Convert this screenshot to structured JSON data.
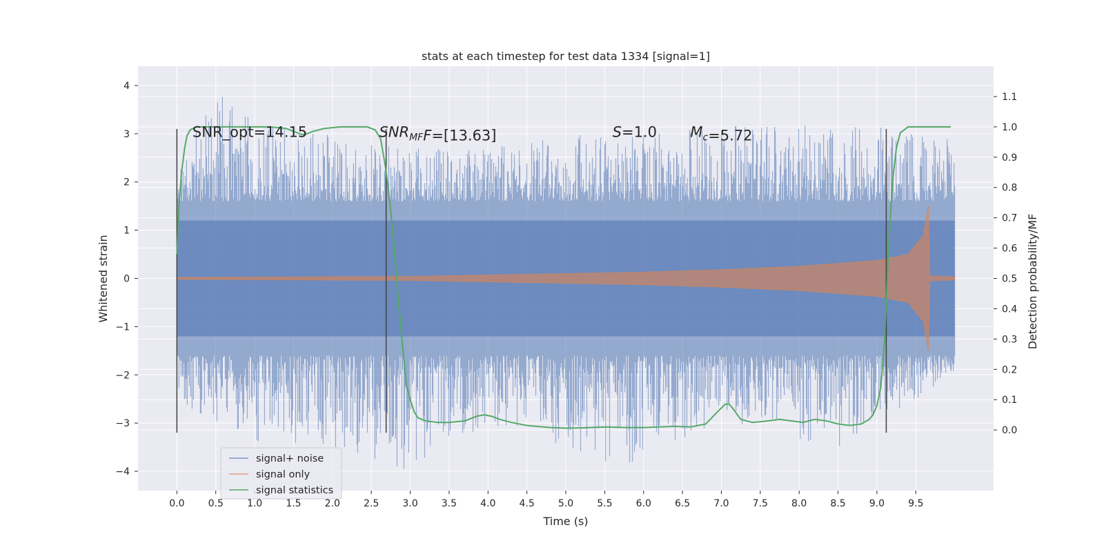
{
  "chart_data": {
    "type": "line",
    "title": "stats at each timestep for test data 1334 [signal=1]",
    "xlabel": "Time (s)",
    "ylabel": "Whitened strain",
    "ylabel_right": "Detection probability/MF",
    "xlim": [
      -0.5,
      10.5
    ],
    "ylim": [
      -4.4,
      4.4
    ],
    "ylim_right": [
      -0.2,
      1.2
    ],
    "x_ticks": [
      "0.0",
      "0.5",
      "1.0",
      "1.5",
      "2.0",
      "2.5",
      "3.0",
      "3.5",
      "4.0",
      "4.5",
      "5.0",
      "5.5",
      "6.0",
      "6.5",
      "7.0",
      "7.5",
      "8.0",
      "8.5",
      "9.0",
      "9.5"
    ],
    "x_tick_values": [
      0.0,
      0.5,
      1.0,
      1.5,
      2.0,
      2.5,
      3.0,
      3.5,
      4.0,
      4.5,
      5.0,
      5.5,
      6.0,
      6.5,
      7.0,
      7.5,
      8.0,
      8.5,
      9.0,
      9.5
    ],
    "y_ticks": [
      "4",
      "3",
      "2",
      "1",
      "0",
      "−1",
      "−2",
      "−3",
      "−4"
    ],
    "y_tick_values": [
      4,
      3,
      2,
      1,
      0,
      -1,
      -2,
      -3,
      -4
    ],
    "y_ticks_right": [
      "1.1",
      "1.0",
      "0.9",
      "0.8",
      "0.7",
      "0.6",
      "0.5",
      "0.4",
      "0.3",
      "0.2",
      "0.1",
      "0.0"
    ],
    "y_tick_values_right": [
      1.1,
      1.0,
      0.9,
      0.8,
      0.7,
      0.6,
      0.5,
      0.4,
      0.3,
      0.2,
      0.1,
      0.0
    ],
    "grid": true,
    "legend_position": "lower-left",
    "series": [
      {
        "name": "signal+ noise",
        "color": "#4c72b0",
        "axis": "left",
        "x_range": [
          0.0,
          10.0
        ],
        "noise_band": 1.2,
        "peak_envelope": [
          [
            0.0,
            2.6
          ],
          [
            0.6,
            4.0
          ],
          [
            1.0,
            3.2
          ],
          [
            2.0,
            3.0
          ],
          [
            3.0,
            2.7
          ],
          [
            4.0,
            2.7
          ],
          [
            5.0,
            3.0
          ],
          [
            6.0,
            3.0
          ],
          [
            7.0,
            3.2
          ],
          [
            8.0,
            3.2
          ],
          [
            9.0,
            3.2
          ],
          [
            10.0,
            3.0
          ]
        ],
        "trough_envelope": [
          [
            0.0,
            -2.6
          ],
          [
            1.0,
            -3.4
          ],
          [
            2.3,
            -3.7
          ],
          [
            3.0,
            -4.0
          ],
          [
            4.0,
            -3.0
          ],
          [
            5.0,
            -3.5
          ],
          [
            5.7,
            -4.0
          ],
          [
            7.0,
            -3.0
          ],
          [
            8.5,
            -3.5
          ],
          [
            10.0,
            -2.0
          ]
        ]
      },
      {
        "name": "signal only",
        "color": "#dd8452",
        "axis": "left",
        "envelope": [
          [
            0.0,
            0.02
          ],
          [
            3.0,
            0.04
          ],
          [
            4.0,
            0.07
          ],
          [
            5.0,
            0.1
          ],
          [
            6.0,
            0.13
          ],
          [
            7.0,
            0.18
          ],
          [
            8.0,
            0.25
          ],
          [
            9.0,
            0.37
          ],
          [
            9.4,
            0.5
          ],
          [
            9.6,
            0.9
          ],
          [
            9.66,
            1.5
          ],
          [
            9.68,
            0.05
          ],
          [
            10.0,
            0.03
          ]
        ]
      },
      {
        "name": "signal statistics",
        "color": "#55a868",
        "axis": "right",
        "x": [
          0.0,
          0.03,
          0.06,
          0.1,
          0.13,
          0.17,
          0.25,
          0.4,
          0.6,
          0.8,
          1.0,
          1.2,
          1.4,
          1.5,
          1.6,
          1.65,
          1.75,
          1.9,
          2.1,
          2.3,
          2.45,
          2.55,
          2.62,
          2.68,
          2.74,
          2.8,
          2.85,
          2.9,
          2.95,
          3.0,
          3.05,
          3.1,
          3.2,
          3.35,
          3.5,
          3.7,
          3.85,
          3.95,
          4.05,
          4.15,
          4.3,
          4.5,
          4.8,
          5.0,
          5.2,
          5.5,
          5.8,
          6.0,
          6.2,
          6.4,
          6.6,
          6.8,
          6.95,
          7.05,
          7.1,
          7.15,
          7.25,
          7.4,
          7.6,
          7.75,
          7.9,
          8.05,
          8.2,
          8.35,
          8.5,
          8.65,
          8.8,
          8.9,
          8.95,
          9.0,
          9.05,
          9.1,
          9.15,
          9.2,
          9.25,
          9.3,
          9.4,
          9.6,
          9.8,
          9.95
        ],
        "y": [
          0.58,
          0.75,
          0.85,
          0.93,
          0.97,
          0.99,
          1.0,
          1.0,
          1.0,
          1.0,
          1.0,
          1.0,
          0.995,
          0.985,
          0.975,
          0.975,
          0.985,
          0.995,
          1.0,
          1.0,
          1.0,
          0.99,
          0.96,
          0.87,
          0.75,
          0.58,
          0.42,
          0.28,
          0.15,
          0.1,
          0.06,
          0.04,
          0.03,
          0.025,
          0.025,
          0.03,
          0.045,
          0.05,
          0.045,
          0.035,
          0.025,
          0.015,
          0.008,
          0.006,
          0.007,
          0.01,
          0.008,
          0.008,
          0.01,
          0.012,
          0.01,
          0.02,
          0.06,
          0.085,
          0.085,
          0.07,
          0.035,
          0.025,
          0.03,
          0.035,
          0.03,
          0.025,
          0.035,
          0.03,
          0.02,
          0.015,
          0.02,
          0.035,
          0.05,
          0.08,
          0.14,
          0.3,
          0.6,
          0.82,
          0.93,
          0.98,
          1.0,
          1.0,
          1.0,
          1.0
        ]
      }
    ],
    "vlines": {
      "color": "#404040",
      "x": [
        0.0,
        2.69,
        9.12
      ],
      "ymin": -3.2,
      "ymax": 3.1
    },
    "annotations": [
      {
        "parts": [
          {
            "t": "SNR_opt=14.15",
            "style": "normal"
          }
        ],
        "x": 0.2
      },
      {
        "parts": [
          {
            "t": "SNR",
            "style": "italic"
          },
          {
            "t": "MF",
            "style": "sub-italic"
          },
          {
            "t": "F=[13.63]",
            "style": "mixed-F"
          }
        ],
        "x": 2.6
      },
      {
        "parts": [
          {
            "t": "S",
            "style": "italic"
          },
          {
            "t": "=1.0",
            "style": "normal"
          }
        ],
        "x": 5.6
      },
      {
        "parts": [
          {
            "t": "M",
            "style": "italic"
          },
          {
            "t": "c",
            "style": "sub-italic"
          },
          {
            "t": "=5.72",
            "style": "normal"
          }
        ],
        "x": 6.6
      }
    ],
    "annotation_y": 3.05
  }
}
